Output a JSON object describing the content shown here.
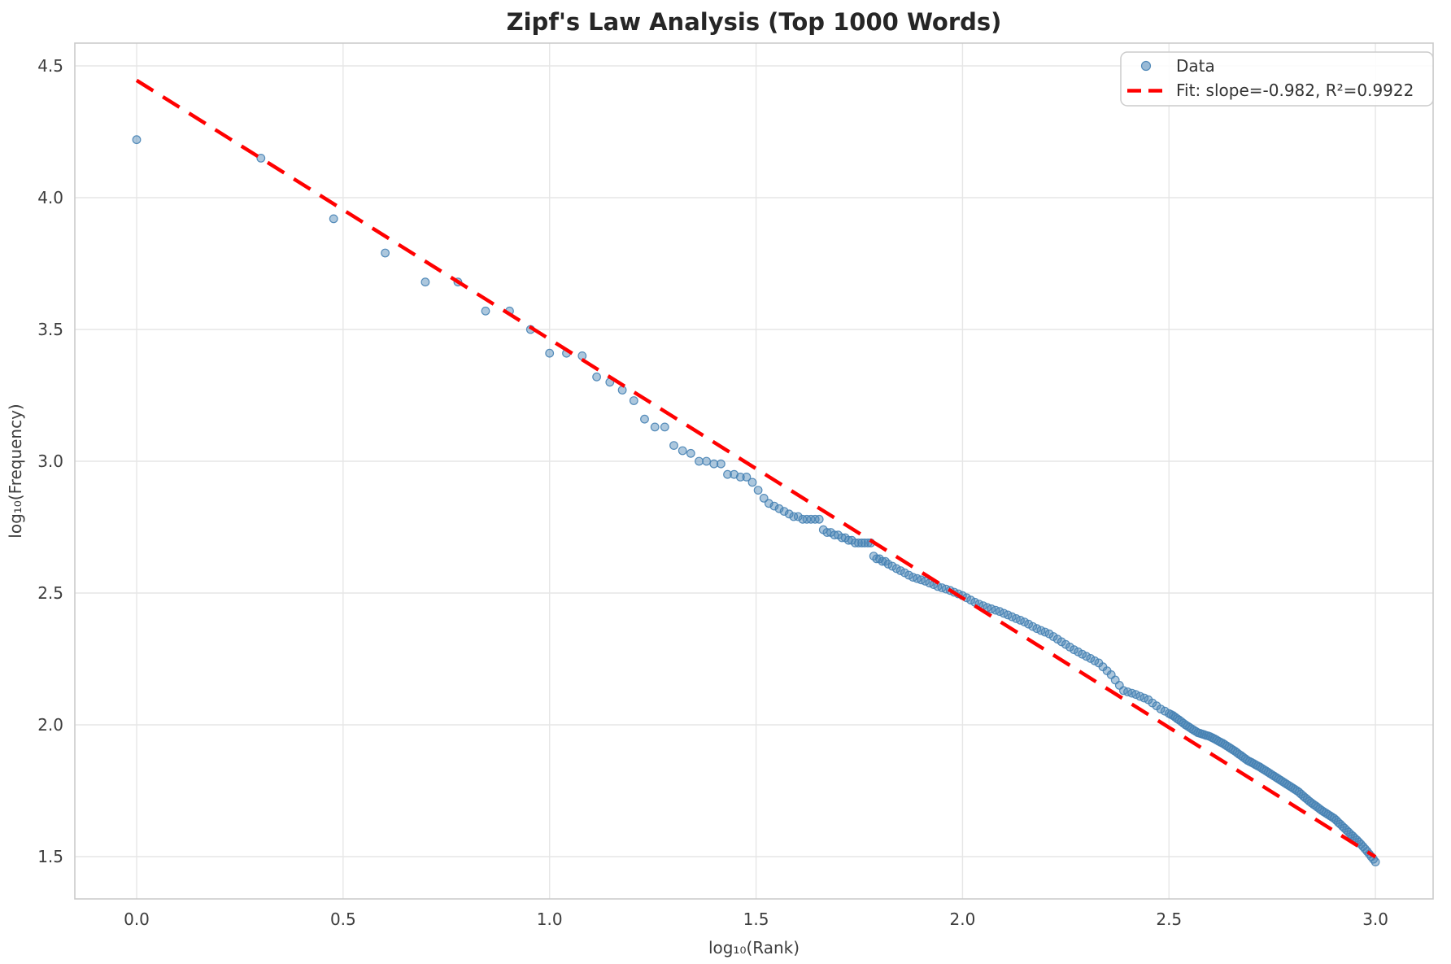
{
  "title": "Zipf's Law Analysis (Top 1000 Words)",
  "axes": {
    "xlabel": "log₁₀(Rank)",
    "ylabel": "log₁₀(Frequency)",
    "x_ticks": [
      0.0,
      0.5,
      1.0,
      1.5,
      2.0,
      2.5,
      3.0
    ],
    "y_ticks": [
      1.5,
      2.0,
      2.5,
      3.0,
      3.5,
      4.0,
      4.5
    ],
    "xlim": [
      -0.15,
      3.15
    ],
    "ylim": [
      1.34,
      4.59
    ],
    "grid": true
  },
  "legend": {
    "position": "upper right",
    "entries": [
      {
        "label": "Data",
        "type": "marker"
      },
      {
        "label": "Fit: slope=-0.982, R²=0.9922",
        "type": "dashed-line"
      }
    ]
  },
  "colors": {
    "marker_fill": "rgba(70,130,180,0.45)",
    "marker_edge": "rgba(70,130,180,0.9)",
    "fit_line": "#ff0000",
    "grid": "#e6e6e6",
    "spine": "#cbcbcb",
    "tick_text": "#3d3d3d",
    "title_text": "#262626",
    "legend_border": "#cccccc",
    "legend_bg": "rgba(255,255,255,0.85)"
  },
  "chart_data": {
    "type": "scatter",
    "title": "Zipf's Law Analysis (Top 1000 Words)",
    "xlabel": "log₁₀(Rank)",
    "ylabel": "log₁₀(Frequency)",
    "xlim": [
      -0.15,
      3.15
    ],
    "ylim": [
      1.34,
      4.59
    ],
    "grid": "on",
    "legend_position": "upper right",
    "series": [
      {
        "name": "Data",
        "type": "scatter",
        "points": [
          [
            0.0,
            4.22
          ],
          [
            0.301,
            4.15
          ],
          [
            0.477,
            3.92
          ],
          [
            0.602,
            3.79
          ],
          [
            0.699,
            3.68
          ],
          [
            0.778,
            3.68
          ],
          [
            0.845,
            3.57
          ],
          [
            0.903,
            3.57
          ],
          [
            0.954,
            3.5
          ],
          [
            1.0,
            3.41
          ],
          [
            1.041,
            3.41
          ],
          [
            1.079,
            3.4
          ],
          [
            1.114,
            3.32
          ],
          [
            1.146,
            3.3
          ],
          [
            1.176,
            3.27
          ],
          [
            1.204,
            3.23
          ],
          [
            1.23,
            3.16
          ],
          [
            1.255,
            3.13
          ],
          [
            1.279,
            3.13
          ],
          [
            1.301,
            3.06
          ],
          [
            1.322,
            3.04
          ],
          [
            1.342,
            3.03
          ],
          [
            1.362,
            3.0
          ],
          [
            1.38,
            3.0
          ],
          [
            1.398,
            2.99
          ],
          [
            1.415,
            2.99
          ],
          [
            1.431,
            2.95
          ],
          [
            1.447,
            2.95
          ],
          [
            1.462,
            2.94
          ],
          [
            1.477,
            2.94
          ],
          [
            1.491,
            2.92
          ],
          [
            1.505,
            2.89
          ],
          [
            1.519,
            2.86
          ],
          [
            1.531,
            2.84
          ],
          [
            1.544,
            2.83
          ],
          [
            1.556,
            2.82
          ],
          [
            1.568,
            2.81
          ],
          [
            1.58,
            2.8
          ],
          [
            1.591,
            2.79
          ],
          [
            1.602,
            2.79
          ],
          [
            1.613,
            2.78
          ],
          [
            1.623,
            2.78
          ],
          [
            1.633,
            2.78
          ],
          [
            1.643,
            2.78
          ],
          [
            1.653,
            2.78
          ],
          [
            1.663,
            2.74
          ],
          [
            1.672,
            2.73
          ],
          [
            1.681,
            2.73
          ],
          [
            1.69,
            2.72
          ],
          [
            1.699,
            2.72
          ],
          [
            1.708,
            2.71
          ],
          [
            1.716,
            2.71
          ],
          [
            1.724,
            2.7
          ],
          [
            1.732,
            2.7
          ],
          [
            1.74,
            2.69
          ],
          [
            1.748,
            2.69
          ],
          [
            1.756,
            2.69
          ],
          [
            1.763,
            2.69
          ],
          [
            1.771,
            2.69
          ],
          [
            1.778,
            2.69
          ],
          [
            1.785,
            2.64
          ],
          [
            1.792,
            2.63
          ],
          [
            1.799,
            2.63
          ],
          [
            1.806,
            2.62
          ],
          [
            1.813,
            2.62
          ],
          [
            1.82,
            2.61
          ],
          [
            1.83,
            2.602
          ],
          [
            1.84,
            2.593
          ],
          [
            1.85,
            2.585
          ],
          [
            1.86,
            2.577
          ],
          [
            1.87,
            2.568
          ],
          [
            1.88,
            2.56
          ],
          [
            1.89,
            2.555
          ],
          [
            1.9,
            2.55
          ],
          [
            1.91,
            2.545
          ],
          [
            1.92,
            2.538
          ],
          [
            1.93,
            2.532
          ],
          [
            1.94,
            2.525
          ],
          [
            1.95,
            2.52
          ],
          [
            1.96,
            2.515
          ],
          [
            1.97,
            2.51
          ],
          [
            1.98,
            2.503
          ],
          [
            1.99,
            2.497
          ],
          [
            2.0,
            2.49
          ],
          [
            2.01,
            2.482
          ],
          [
            2.02,
            2.473
          ],
          [
            2.03,
            2.465
          ],
          [
            2.04,
            2.458
          ],
          [
            2.05,
            2.452
          ],
          [
            2.06,
            2.445
          ],
          [
            2.07,
            2.44
          ],
          [
            2.08,
            2.435
          ],
          [
            2.09,
            2.43
          ],
          [
            2.1,
            2.423
          ],
          [
            2.11,
            2.417
          ],
          [
            2.12,
            2.41
          ],
          [
            2.13,
            2.403
          ],
          [
            2.14,
            2.397
          ],
          [
            2.15,
            2.39
          ],
          [
            2.16,
            2.382
          ],
          [
            2.17,
            2.373
          ],
          [
            2.18,
            2.365
          ],
          [
            2.19,
            2.358
          ],
          [
            2.2,
            2.352
          ],
          [
            2.21,
            2.345
          ],
          [
            2.22,
            2.335
          ],
          [
            2.23,
            2.325
          ],
          [
            2.24,
            2.315
          ],
          [
            2.25,
            2.305
          ],
          [
            2.26,
            2.295
          ],
          [
            2.27,
            2.285
          ],
          [
            2.28,
            2.277
          ],
          [
            2.29,
            2.268
          ],
          [
            2.3,
            2.26
          ],
          [
            2.31,
            2.252
          ],
          [
            2.32,
            2.243
          ],
          [
            2.33,
            2.235
          ],
          [
            2.34,
            2.22
          ],
          [
            2.35,
            2.205
          ],
          [
            2.36,
            2.19
          ],
          [
            2.37,
            2.17
          ],
          [
            2.38,
            2.15
          ],
          [
            2.39,
            2.13
          ],
          [
            2.4,
            2.125
          ],
          [
            2.41,
            2.12
          ],
          [
            2.42,
            2.115
          ],
          [
            2.43,
            2.108
          ],
          [
            2.44,
            2.102
          ],
          [
            2.45,
            2.095
          ],
          [
            2.46,
            2.083
          ],
          [
            2.47,
            2.072
          ],
          [
            2.48,
            2.06
          ],
          [
            2.49,
            2.052
          ],
          [
            2.5,
            2.043
          ],
          [
            2.51,
            2.035
          ],
          [
            2.52,
            2.023
          ],
          [
            2.53,
            2.012
          ],
          [
            2.54,
            2.0
          ],
          [
            2.55,
            1.99
          ],
          [
            2.56,
            1.98
          ],
          [
            2.57,
            1.97
          ],
          [
            2.58,
            1.965
          ],
          [
            2.59,
            1.96
          ],
          [
            2.6,
            1.955
          ],
          [
            2.61,
            1.947
          ],
          [
            2.62,
            1.938
          ],
          [
            2.63,
            1.93
          ],
          [
            2.64,
            1.92
          ],
          [
            2.65,
            1.91
          ],
          [
            2.66,
            1.9
          ],
          [
            2.67,
            1.888
          ],
          [
            2.68,
            1.877
          ],
          [
            2.69,
            1.865
          ],
          [
            2.7,
            1.857
          ],
          [
            2.71,
            1.848
          ],
          [
            2.72,
            1.84
          ],
          [
            2.73,
            1.83
          ],
          [
            2.74,
            1.82
          ],
          [
            2.75,
            1.81
          ],
          [
            2.76,
            1.8
          ],
          [
            2.77,
            1.79
          ],
          [
            2.78,
            1.78
          ],
          [
            2.79,
            1.77
          ],
          [
            2.8,
            1.76
          ],
          [
            2.81,
            1.75
          ],
          [
            2.82,
            1.737
          ],
          [
            2.83,
            1.723
          ],
          [
            2.84,
            1.71
          ],
          [
            2.85,
            1.698
          ],
          [
            2.86,
            1.687
          ],
          [
            2.87,
            1.675
          ],
          [
            2.88,
            1.665
          ],
          [
            2.89,
            1.655
          ],
          [
            2.9,
            1.645
          ],
          [
            2.91,
            1.63
          ],
          [
            2.92,
            1.615
          ],
          [
            2.93,
            1.6
          ],
          [
            2.94,
            1.585
          ],
          [
            2.95,
            1.57
          ],
          [
            2.96,
            1.555
          ],
          [
            2.97,
            1.538
          ],
          [
            2.98,
            1.52
          ],
          [
            2.99,
            1.5
          ],
          [
            3.0,
            1.48
          ],
          [
            2.505,
            2.039
          ],
          [
            2.515,
            2.029
          ],
          [
            2.525,
            2.018
          ],
          [
            2.535,
            2.006
          ],
          [
            2.545,
            1.995
          ],
          [
            2.555,
            1.985
          ],
          [
            2.565,
            1.975
          ],
          [
            2.575,
            1.968
          ],
          [
            2.585,
            1.963
          ],
          [
            2.595,
            1.958
          ],
          [
            2.605,
            1.951
          ],
          [
            2.615,
            1.943
          ],
          [
            2.625,
            1.934
          ],
          [
            2.635,
            1.925
          ],
          [
            2.645,
            1.915
          ],
          [
            2.655,
            1.905
          ],
          [
            2.665,
            1.894
          ],
          [
            2.675,
            1.883
          ],
          [
            2.685,
            1.871
          ],
          [
            2.695,
            1.861
          ],
          [
            2.705,
            1.853
          ],
          [
            2.715,
            1.844
          ],
          [
            2.725,
            1.835
          ],
          [
            2.735,
            1.825
          ],
          [
            2.745,
            1.815
          ],
          [
            2.755,
            1.805
          ],
          [
            2.765,
            1.795
          ],
          [
            2.775,
            1.785
          ],
          [
            2.785,
            1.775
          ],
          [
            2.795,
            1.765
          ],
          [
            2.805,
            1.755
          ],
          [
            2.815,
            1.744
          ],
          [
            2.825,
            1.73
          ],
          [
            2.835,
            1.717
          ],
          [
            2.845,
            1.704
          ],
          [
            2.855,
            1.693
          ],
          [
            2.865,
            1.681
          ],
          [
            2.875,
            1.67
          ],
          [
            2.885,
            1.66
          ],
          [
            2.895,
            1.65
          ],
          [
            2.905,
            1.638
          ],
          [
            2.915,
            1.623
          ],
          [
            2.925,
            1.608
          ],
          [
            2.935,
            1.593
          ],
          [
            2.945,
            1.578
          ],
          [
            2.955,
            1.563
          ],
          [
            2.965,
            1.547
          ],
          [
            2.975,
            1.529
          ],
          [
            2.985,
            1.51
          ],
          [
            2.995,
            1.49
          ]
        ]
      },
      {
        "name": "Fit: slope=-0.982, R²=0.9922",
        "type": "line",
        "style": "dashed",
        "slope": -0.982,
        "intercept": 4.445,
        "r_squared": 0.9922,
        "x_range": [
          0.0,
          3.0
        ],
        "color": "#ff0000"
      }
    ]
  }
}
